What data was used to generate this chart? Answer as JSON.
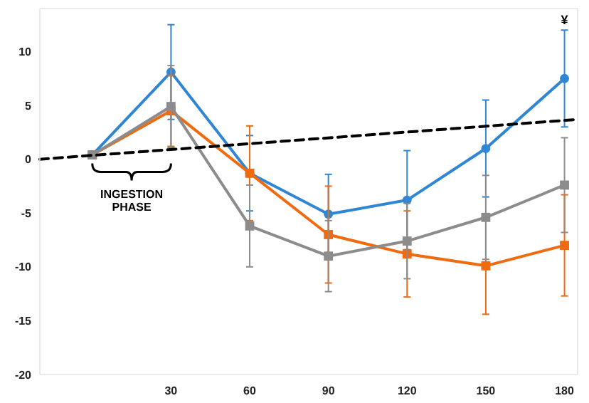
{
  "chart_data": {
    "type": "line",
    "x": [
      0,
      30,
      60,
      90,
      120,
      150,
      180
    ],
    "xlim": [
      -20,
      185
    ],
    "xticks": [
      30,
      60,
      90,
      120,
      150,
      180
    ],
    "ylim": [
      -20,
      14
    ],
    "yticks": [
      -20,
      -15,
      -10,
      -5,
      0,
      5,
      10
    ],
    "series": [
      {
        "color": "#2e86d4",
        "marker": "circle",
        "values": [
          0.4,
          8.1,
          -1.3,
          -5.1,
          -3.8,
          1.0,
          7.5
        ],
        "errors": [
          null,
          4.4,
          3.5,
          3.7,
          4.6,
          4.5,
          4.5
        ]
      },
      {
        "color": "#f06a10",
        "marker": "square",
        "values": [
          0.4,
          4.5,
          -1.3,
          -7.0,
          -8.8,
          -9.9,
          -8.0
        ],
        "errors": [
          null,
          3.3,
          4.4,
          4.5,
          4.0,
          4.5,
          4.7
        ]
      },
      {
        "color": "#8c8c8c",
        "marker": "square",
        "values": [
          0.4,
          4.9,
          -6.2,
          -9.0,
          -7.6,
          -5.4,
          -2.4
        ],
        "errors": [
          null,
          3.8,
          3.8,
          3.3,
          3.5,
          3.9,
          4.4
        ]
      },
      {
        "type": "line",
        "color": "#000000",
        "line_style": "dashed",
        "marker": "none",
        "x": [
          -20,
          185
        ],
        "values": [
          0,
          3.7
        ]
      }
    ],
    "annotations": [
      "INGESTION PHASE",
      "¥"
    ],
    "grid": false
  }
}
